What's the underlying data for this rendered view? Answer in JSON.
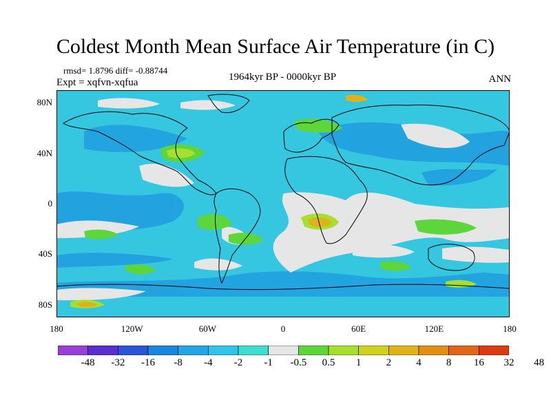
{
  "title": "Coldest Month Mean Surface Air Temperature (in C)",
  "stats": "rmsd= 1.8796 diff= -0.88744",
  "experiment": "Expt = xqfvn-xqfua",
  "period": "1964kyr BP - 0000kyr BP",
  "season": "ANN",
  "y_axis": {
    "ticks": [
      {
        "label": "80N",
        "lat": 80
      },
      {
        "label": "40N",
        "lat": 40
      },
      {
        "label": "0",
        "lat": 0
      },
      {
        "label": "40S",
        "lat": -40
      },
      {
        "label": "80S",
        "lat": -80
      }
    ]
  },
  "x_axis": {
    "ticks": [
      {
        "label": "180",
        "lon": -180
      },
      {
        "label": "120W",
        "lon": -120
      },
      {
        "label": "60W",
        "lon": -60
      },
      {
        "label": "0",
        "lon": 0
      },
      {
        "label": "60E",
        "lon": 60
      },
      {
        "label": "120E",
        "lon": 120
      },
      {
        "label": "180",
        "lon": 180
      }
    ]
  },
  "colorbar": {
    "colors": [
      "#9a3fd6",
      "#5a2fd0",
      "#2b55d8",
      "#1b86e0",
      "#22a6e6",
      "#30c4e8",
      "#3fdcd2",
      "#e6e6e6",
      "#5cd63a",
      "#a6e02e",
      "#cfd11e",
      "#e0b21a",
      "#e08e14",
      "#e0661a",
      "#dc3a10"
    ],
    "labels": [
      "-48",
      "-32",
      "-16",
      "-8",
      "-4",
      "-2",
      "-1",
      "-0.5",
      "0.5",
      "1",
      "2",
      "4",
      "8",
      "16",
      "32",
      "48"
    ]
  },
  "map": {
    "background": "#35c6e0",
    "ocean_base": "#27b2df"
  }
}
